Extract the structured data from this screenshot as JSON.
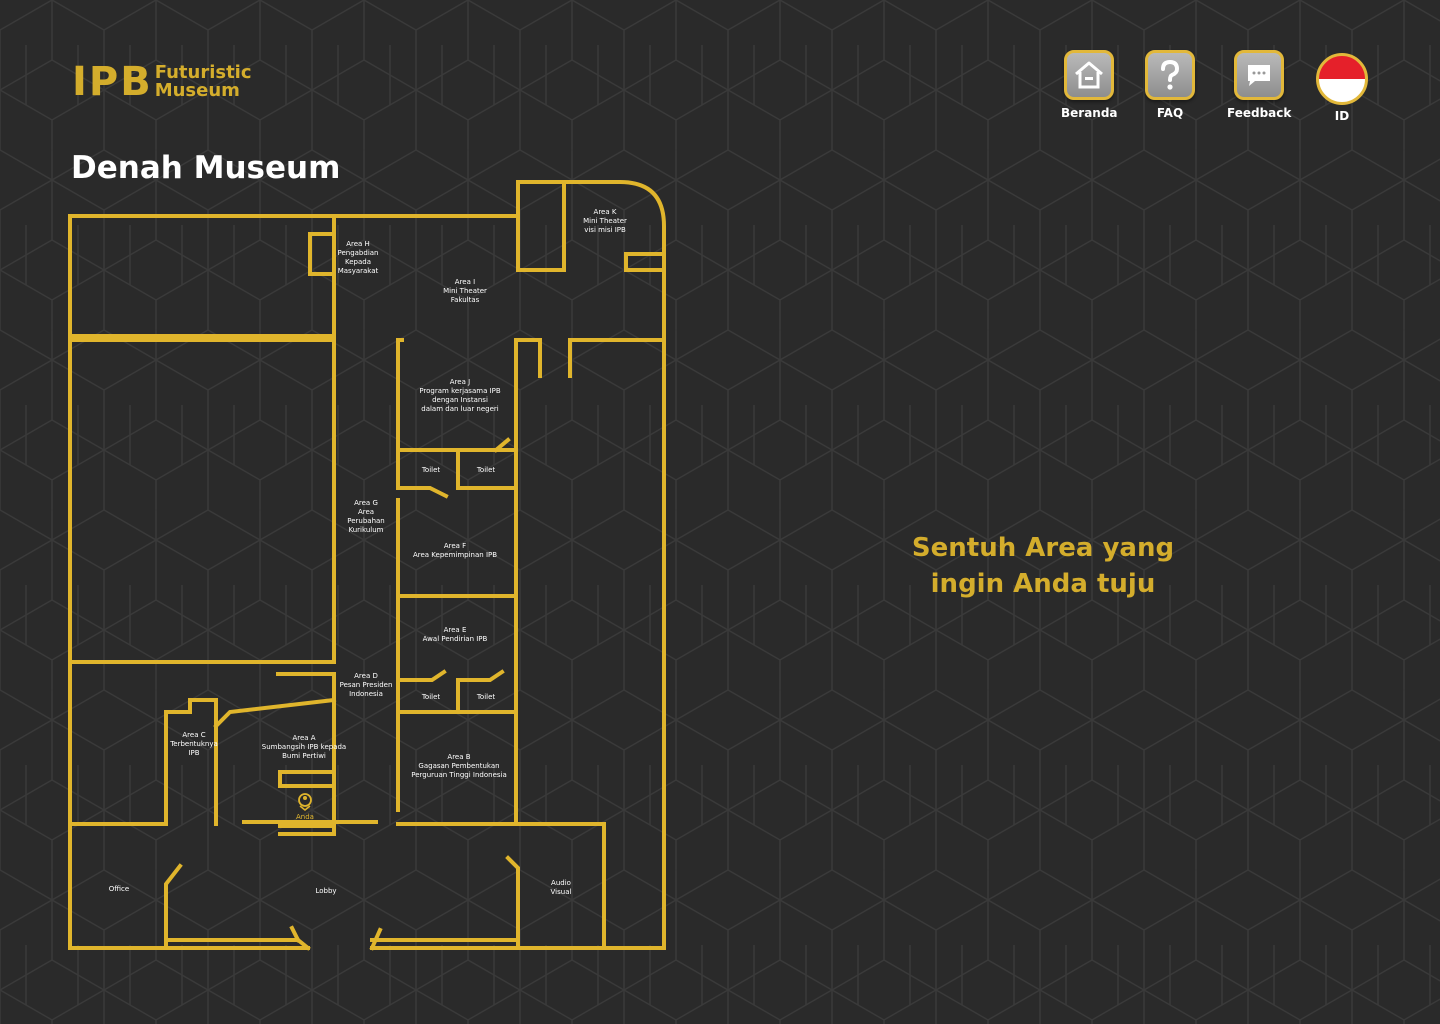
{
  "header": {
    "logo_main": "IPB",
    "logo_line1": "Futuristic",
    "logo_line2": "Museum",
    "page_title": "Denah Museum"
  },
  "nav": {
    "home_label": "Beranda",
    "faq_label": "FAQ",
    "feedback_label": "Feedback",
    "language_label": "ID"
  },
  "hint": {
    "line1": "Sentuh Area yang",
    "line2": "ingin Anda tuju"
  },
  "map": {
    "areas": {
      "area_k": [
        "Area K",
        "Mini Theater",
        "visi misi IPB"
      ],
      "area_h": [
        "Area H",
        "Pengabdian",
        "Kepada",
        "Masyarakat"
      ],
      "area_i": [
        "Area I",
        "Mini Theater",
        "Fakultas"
      ],
      "area_j": [
        "Area J",
        "Program kerjasama IPB",
        "dengan Instansi",
        "dalam dan luar negeri"
      ],
      "toilet_1": [
        "Toilet"
      ],
      "toilet_2": [
        "Toilet"
      ],
      "area_g": [
        "Area G",
        "Area",
        "Perubahan",
        "Kurikulum"
      ],
      "area_f": [
        "Area F",
        "Area Kepemimpinan IPB"
      ],
      "area_e": [
        "Area E",
        "Awal Pendirian IPB"
      ],
      "area_d": [
        "Area D",
        "Pesan Presiden",
        "Indonesia"
      ],
      "toilet_3": [
        "Toilet"
      ],
      "toilet_4": [
        "Toilet"
      ],
      "area_c": [
        "Area C",
        "Terbentuknya",
        "IPB"
      ],
      "area_a": [
        "Area A",
        "Sumbangsih IPB kepada",
        "Bumi Pertiwi"
      ],
      "area_b": [
        "Area B",
        "Gagasan Pembentukan",
        "Perguruan Tinggi Indonesia"
      ],
      "office": [
        "Office"
      ],
      "lobby": [
        "Lobby"
      ],
      "audio_visual": [
        "Audio",
        "Visual"
      ]
    },
    "you_are_here": "Anda"
  },
  "colors": {
    "background": "#2a2a2a",
    "gold": "#d4ad2c",
    "wall": "#e0b52c",
    "text": "#ffffff",
    "flag_red": "#e5202a"
  },
  "icons": {
    "home": "home-icon",
    "faq": "question-icon",
    "feedback": "chat-icon",
    "language": "indonesia-flag-icon",
    "location": "location-pin-icon"
  }
}
